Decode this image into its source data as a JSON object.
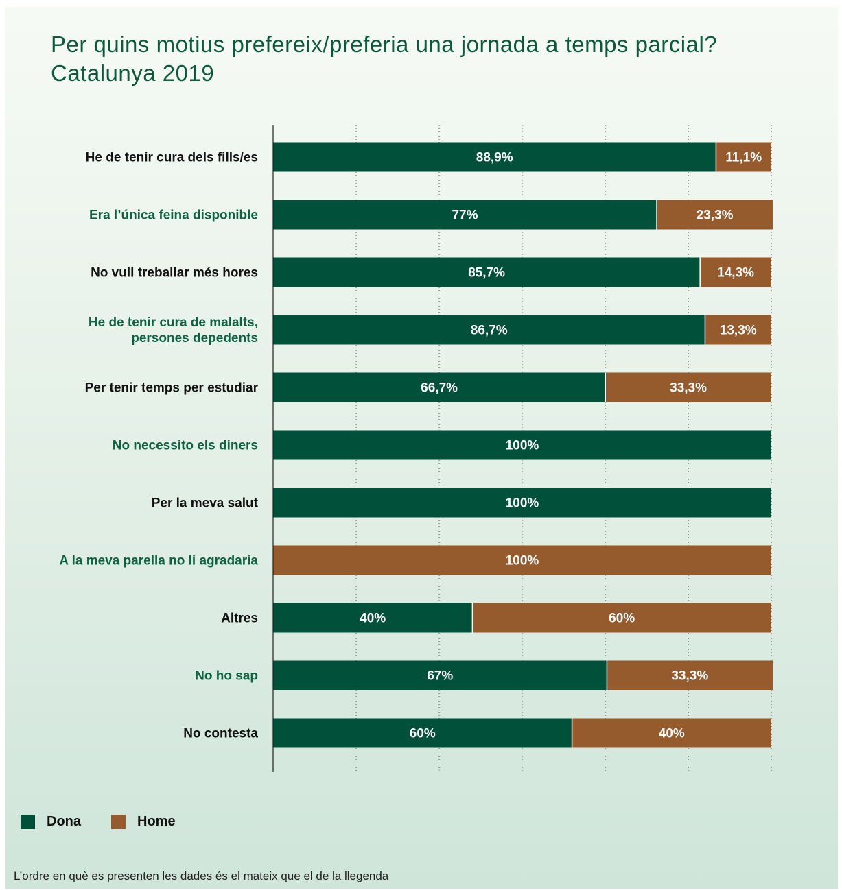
{
  "title_lines": [
    "Per quins motius prefereix/preferia una jornada a temps parcial?",
    "Catalunya 2019"
  ],
  "colors": {
    "dona": "#01513a",
    "home": "#955b2c",
    "label_black": "#111111",
    "label_green": "#0b6342"
  },
  "legend": [
    {
      "name": "Dona",
      "color": "#01513a"
    },
    {
      "name": "Home",
      "color": "#955b2c"
    }
  ],
  "footnote": "L’ordre en què es presenten les dades és el mateix que el de la llegenda",
  "chart_data": {
    "type": "bar",
    "orientation": "horizontal",
    "stacked": true,
    "xlim": [
      0,
      100
    ],
    "grid": true,
    "legend_position": "bottom-left",
    "categories": [
      [
        "He de tenir cura dels fills/es"
      ],
      [
        "Era l’única feina disponible"
      ],
      [
        "No vull treballar més hores"
      ],
      [
        "He de tenir cura de malalts,",
        "persones depedents"
      ],
      [
        "Per tenir temps per estudiar"
      ],
      [
        "No necessito els diners"
      ],
      [
        "Per la meva salut"
      ],
      [
        "A la meva parella no li agradaria"
      ],
      [
        "Altres"
      ],
      [
        "No ho sap"
      ],
      [
        "No contesta"
      ]
    ],
    "series": [
      {
        "name": "Dona",
        "values": [
          88.9,
          77,
          85.7,
          86.7,
          66.7,
          100,
          100,
          0,
          40,
          67,
          60
        ],
        "labels": [
          "88,9%",
          "77%",
          "85,7%",
          "86,7%",
          "66,7%",
          "100%",
          "100%",
          "",
          "40%",
          "67%",
          "60%"
        ]
      },
      {
        "name": "Home",
        "values": [
          11.1,
          23.3,
          14.3,
          13.3,
          33.3,
          0,
          0,
          100,
          60,
          33.3,
          40
        ],
        "labels": [
          "11,1%",
          "23,3%",
          "14,3%",
          "13,3%",
          "33,3%",
          "",
          "",
          "100%",
          "60%",
          "33,3%",
          "40%"
        ]
      }
    ]
  }
}
